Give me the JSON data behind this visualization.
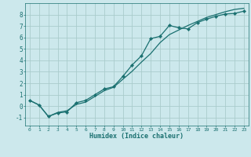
{
  "xlabel": "Humidex (Indice chaleur)",
  "bg_color": "#cce8ec",
  "grid_color": "#aacccc",
  "line_color": "#1a7070",
  "marker_color": "#1a7070",
  "xlim": [
    -0.5,
    23.5
  ],
  "ylim": [
    -1.7,
    9.0
  ],
  "xticks": [
    0,
    1,
    2,
    3,
    4,
    5,
    6,
    7,
    8,
    9,
    10,
    11,
    12,
    13,
    14,
    15,
    16,
    17,
    18,
    19,
    20,
    21,
    22,
    23
  ],
  "yticks": [
    -1,
    0,
    1,
    2,
    3,
    4,
    5,
    6,
    7,
    8
  ],
  "line1_x": [
    0,
    1,
    2,
    3,
    4,
    5,
    6,
    7,
    8,
    9,
    10,
    11,
    12,
    13,
    14,
    15,
    16,
    17,
    18,
    19,
    20,
    21,
    22,
    23
  ],
  "line1_y": [
    0.5,
    0.1,
    -0.9,
    -0.6,
    -0.5,
    0.3,
    0.5,
    1.0,
    1.5,
    1.7,
    2.6,
    3.6,
    4.4,
    5.9,
    6.1,
    7.05,
    6.85,
    6.75,
    7.3,
    7.6,
    7.85,
    8.05,
    8.1,
    8.3
  ],
  "line2_x": [
    0,
    1,
    2,
    3,
    4,
    5,
    6,
    7,
    8,
    9,
    10,
    11,
    12,
    13,
    14,
    15,
    16,
    17,
    18,
    19,
    20,
    21,
    22,
    23
  ],
  "line2_y": [
    0.5,
    0.1,
    -0.9,
    -0.55,
    -0.4,
    0.15,
    0.35,
    0.85,
    1.35,
    1.65,
    2.35,
    3.05,
    3.85,
    4.6,
    5.55,
    6.25,
    6.65,
    7.05,
    7.4,
    7.75,
    8.0,
    8.25,
    8.45,
    8.55
  ]
}
